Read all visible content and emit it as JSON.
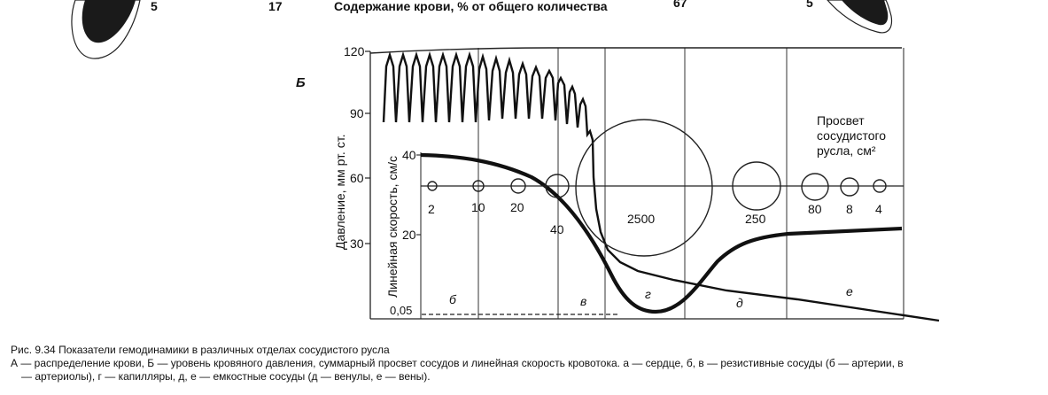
{
  "figure": {
    "top": {
      "counts": [
        "5",
        "17",
        "67",
        "5"
      ],
      "heading": "Содержание крови, % от общего количества"
    },
    "panel_label": "Б",
    "y_axis_pressure": {
      "label": "Давление, мм рт. ст.",
      "ticks": [
        "120",
        "90",
        "60",
        "30"
      ]
    },
    "y_axis_velocity": {
      "label": "Линейная скорость, см/с",
      "ticks": [
        "40",
        "20",
        "0,05"
      ]
    },
    "lumen_label": [
      "Просвет",
      "сосудистого",
      "русла, см²"
    ],
    "lumen_values": [
      "2",
      "10",
      "20",
      "40",
      "2500",
      "250",
      "80",
      "8",
      "4"
    ],
    "segments": [
      "б",
      "в",
      "г",
      "д",
      "е"
    ]
  },
  "caption": {
    "title": "Рис. 9.34 Показатели гемодинамики в различных отделах сосудистого русла",
    "line2": "А — распределение крови, Б — уровень кровяного давления, суммарный просвет сосудов и линейная скорость кровотока. а — сердце, б, в — резистивные сосуды (б — артерии, в",
    "line3": "— артериолы), г — капилляры, д, е — емкостные сосуды (д — венулы, е — вены)."
  }
}
